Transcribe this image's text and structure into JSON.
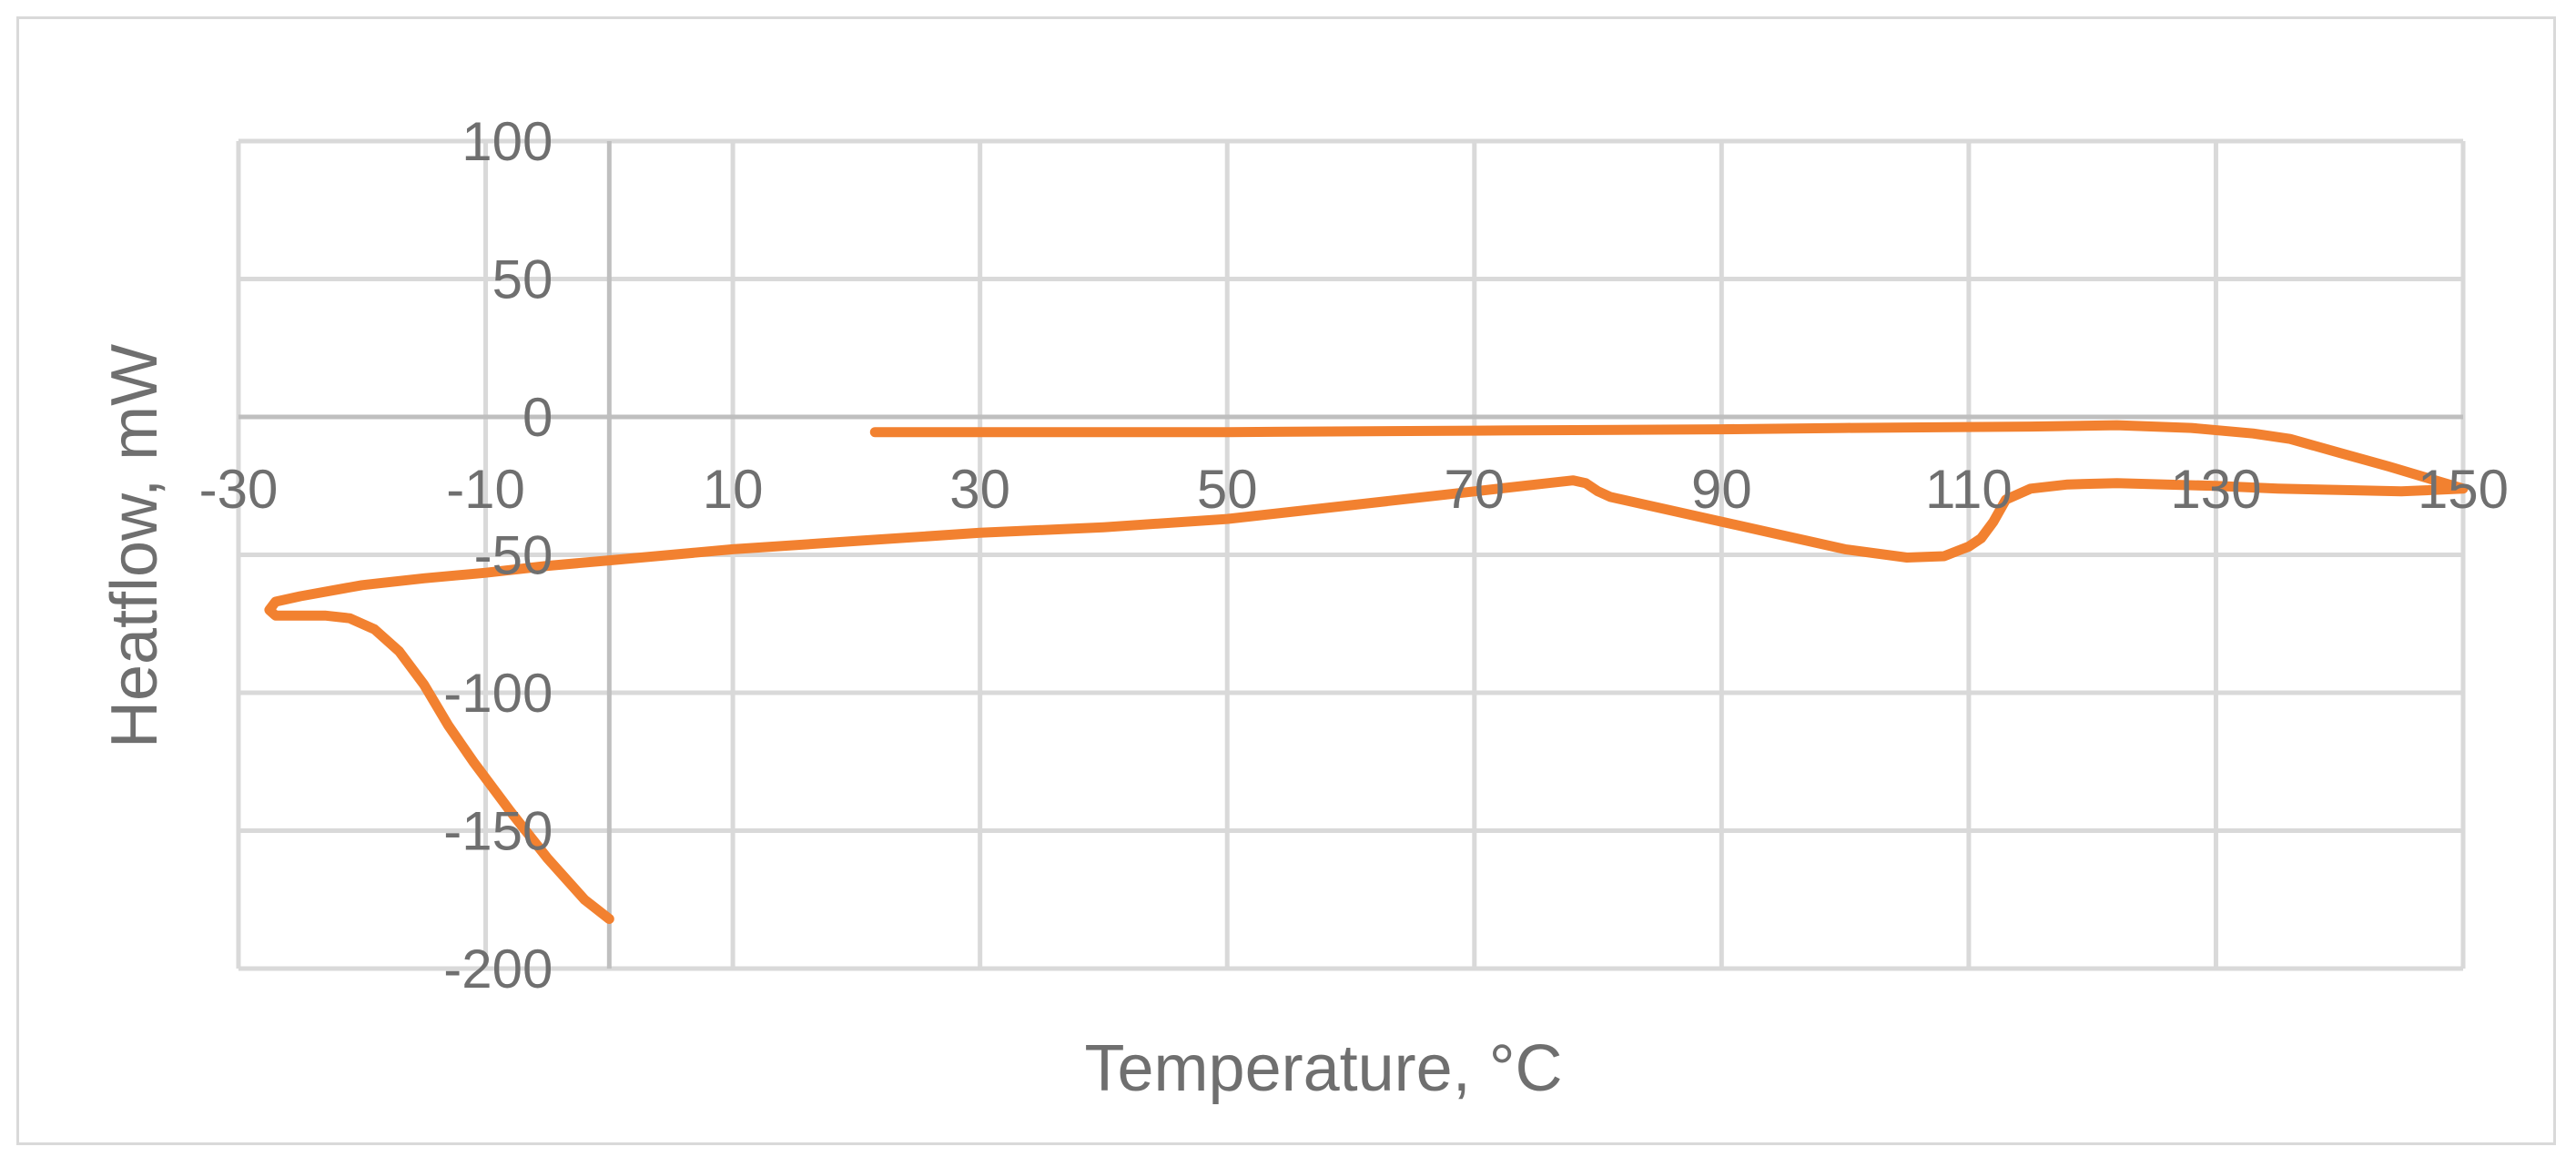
{
  "chart_data": {
    "type": "line",
    "title": "",
    "xlabel": "Temperature, °C",
    "ylabel": "Heatflow, mW",
    "xlim": [
      -30,
      150
    ],
    "ylim": [
      -200,
      100
    ],
    "x_ticks": [
      -30,
      -10,
      10,
      30,
      50,
      70,
      90,
      110,
      130,
      150
    ],
    "y_ticks": [
      100,
      50,
      0,
      -50,
      -100,
      -150,
      -200
    ],
    "x_tick_labels": [
      "-30",
      "-10",
      "10",
      "30",
      "50",
      "70",
      "90",
      "110",
      "130",
      "150"
    ],
    "y_tick_labels": [
      "100",
      "50",
      "0",
      "-50",
      "-100",
      "-150",
      "-200"
    ],
    "grid": true,
    "legend": "none",
    "colors": {
      "series": "#f28130",
      "grid": "#d9d9d9",
      "axis": "#bfbfbf",
      "text": "#6f6f6f",
      "border": "#d9d9d9"
    },
    "series": [
      {
        "points": [
          [
            0,
            -182
          ],
          [
            -2,
            -175
          ],
          [
            -5,
            -160
          ],
          [
            -8,
            -143
          ],
          [
            -11,
            -125
          ],
          [
            -13,
            -112
          ],
          [
            -15,
            -97
          ],
          [
            -17,
            -85
          ],
          [
            -19,
            -77
          ],
          [
            -21,
            -73
          ],
          [
            -23,
            -72
          ],
          [
            -25,
            -72
          ],
          [
            -27,
            -72
          ],
          [
            -27.5,
            -70
          ],
          [
            -27,
            -67
          ],
          [
            -25,
            -65
          ],
          [
            -20,
            -61
          ],
          [
            -15,
            -58.5
          ],
          [
            -10,
            -56.5
          ],
          [
            -5,
            -54
          ],
          [
            0,
            -52
          ],
          [
            10,
            -48
          ],
          [
            20,
            -45
          ],
          [
            30,
            -42
          ],
          [
            40,
            -40
          ],
          [
            50,
            -37
          ],
          [
            60,
            -32
          ],
          [
            70,
            -27
          ],
          [
            76,
            -24
          ],
          [
            78,
            -23
          ],
          [
            79,
            -24
          ],
          [
            80,
            -27
          ],
          [
            81,
            -29
          ],
          [
            85,
            -33
          ],
          [
            90,
            -38
          ],
          [
            95,
            -43
          ],
          [
            100,
            -48
          ],
          [
            105,
            -51
          ],
          [
            108,
            -50.5
          ],
          [
            110,
            -47
          ],
          [
            111,
            -44
          ],
          [
            112,
            -38
          ],
          [
            113,
            -30
          ],
          [
            115,
            -26
          ],
          [
            118,
            -24.5
          ],
          [
            122,
            -24
          ],
          [
            130,
            -25
          ],
          [
            135,
            -26
          ],
          [
            140,
            -26.5
          ],
          [
            145,
            -27
          ],
          [
            150,
            -26
          ],
          [
            147,
            -22
          ],
          [
            144,
            -18
          ],
          [
            140,
            -13
          ],
          [
            136,
            -8
          ],
          [
            133,
            -6
          ],
          [
            128,
            -4
          ],
          [
            122,
            -3
          ],
          [
            115,
            -3.5
          ],
          [
            100,
            -4
          ],
          [
            90,
            -4.5
          ],
          [
            70,
            -5
          ],
          [
            50,
            -5.5
          ],
          [
            30,
            -5.5
          ],
          [
            21.5,
            -5.5
          ]
        ]
      }
    ]
  }
}
